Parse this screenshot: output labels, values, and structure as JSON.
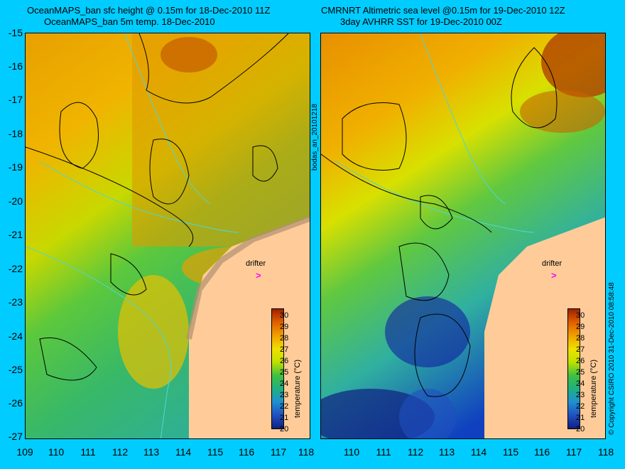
{
  "left_panel": {
    "title_line1": "OceanMAPS_ban sfc height @ 0.15m for 18-Dec-2010 11Z",
    "title_line2": "OceanMAPS_ban 5m temp. 18-Dec-2010",
    "drifter_label": "drifter",
    "drifter_marker": ">"
  },
  "right_panel": {
    "title_line1": "CMRNRT Altimetric sea level  @0.15m  for 19-Dec-2010 12Z",
    "title_line2": "3day AVHRR SST for 19-Dec-2010 00Z",
    "drifter_label": "drifter",
    "drifter_marker": ">"
  },
  "y_ticks": [
    "-15",
    "-16",
    "-17",
    "-18",
    "-19",
    "-20",
    "-21",
    "-22",
    "-23",
    "-24",
    "-25",
    "-26",
    "-27"
  ],
  "x_ticks": [
    "109",
    "110",
    "111",
    "112",
    "113",
    "114",
    "115",
    "116",
    "117",
    "118"
  ],
  "colorbar": {
    "label": "temperature (°C)",
    "ticks": [
      "30",
      "29",
      "28",
      "27",
      "26",
      "25",
      "24",
      "23",
      "22",
      "21",
      "20"
    ]
  },
  "middle_label": "bodas_an_20101218",
  "copyright": "© Copyright CSIRO 2010   31-Dec-2010 08:58:48",
  "colors": {
    "background": "#00ccff",
    "land": "#ffcc99",
    "contour": "#000000",
    "bathymetry": "#4dd6d6",
    "drifter_marker": "#ff00ff"
  }
}
